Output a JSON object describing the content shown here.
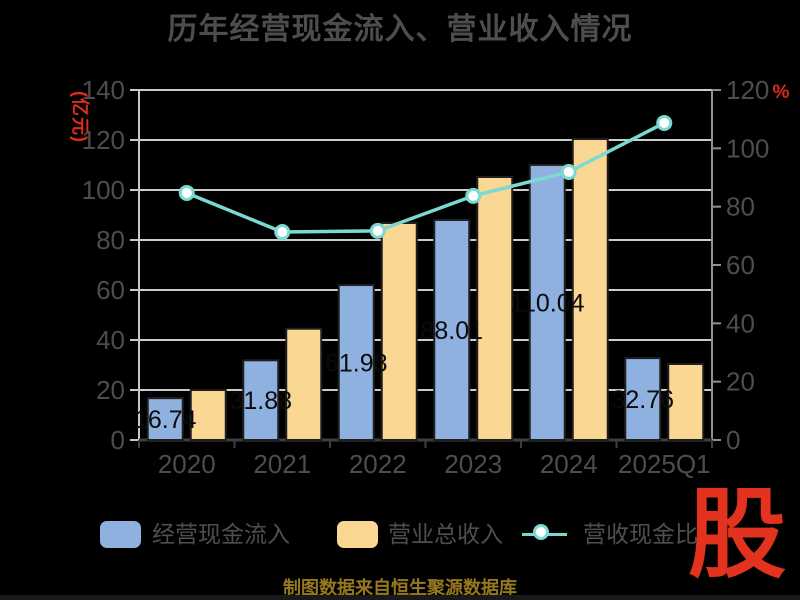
{
  "title": "历年经营现金流入、营业收入情况",
  "source_note": "制图数据来自恒生聚源数据库",
  "logo_text": "股",
  "colors": {
    "background": "#000000",
    "title_text": "#4d4d4d",
    "axis_label_text": "#4d4d4d",
    "grid_line": "#cccccc",
    "x_axis_line": "#3f3f3f",
    "left_axis_line": "#c9c9c9",
    "right_axis_line": "#8f8f8f",
    "accent_red": "#e02b1b",
    "bar_blue": "#8EB1DF",
    "bar_orange": "#FBD794",
    "line_teal": "#7CD9D2",
    "bar_label_text": "#0b0b0b",
    "source_text": "#97781e"
  },
  "chart_data": {
    "type": "bar",
    "subtype": "grouped-bars-with-line",
    "title": "历年经营现金流入、营业收入情况",
    "categories": [
      "2020",
      "2021",
      "2022",
      "2023",
      "2024",
      "2025Q1"
    ],
    "series": [
      {
        "name": "经营现金流入",
        "type": "bar",
        "yaxis": "left",
        "color": "#8EB1DF",
        "values": [
          16.74,
          31.88,
          61.98,
          88.01,
          110.04,
          32.76
        ],
        "labels": [
          "16.74",
          "31.88",
          "61.98",
          "88.01",
          "110.04",
          "32.76"
        ]
      },
      {
        "name": "营业总收入",
        "type": "bar",
        "yaxis": "left",
        "color": "#FBD794",
        "values": [
          20.0,
          44.5,
          86.8,
          105.2,
          120.4,
          30.4
        ],
        "labels": []
      },
      {
        "name": "营收现金比",
        "type": "line",
        "yaxis": "right",
        "color": "#7CD9D2",
        "marker": "circle-white-fill",
        "values": [
          84.7,
          71.3,
          71.7,
          83.7,
          91.9,
          108.7
        ]
      }
    ],
    "left_axis": {
      "name": "(亿元)",
      "min": 0,
      "max": 140,
      "step": 20,
      "tick_labels": [
        "0",
        "20",
        "40",
        "60",
        "80",
        "100",
        "120",
        "140"
      ]
    },
    "right_axis": {
      "name": "%",
      "min": 0,
      "max": 120,
      "step": 20,
      "tick_labels": [
        "0",
        "20",
        "40",
        "60",
        "80",
        "100",
        "120"
      ]
    },
    "grid": true,
    "legend_position": "bottom"
  }
}
